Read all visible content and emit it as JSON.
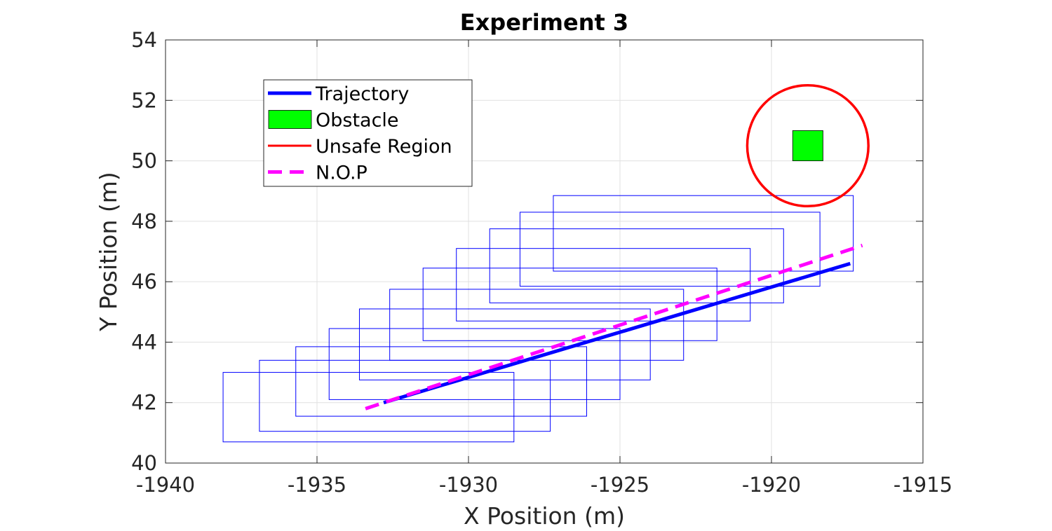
{
  "chart_data": {
    "type": "line",
    "title": "Experiment 3",
    "xlabel": "X Position (m)",
    "ylabel": "Y Position (m)",
    "xlim": [
      -1940,
      -1915
    ],
    "ylim": [
      40,
      54
    ],
    "xticks": [
      -1940,
      -1935,
      -1930,
      -1925,
      -1920,
      -1915
    ],
    "yticks": [
      40,
      42,
      44,
      46,
      48,
      50,
      52,
      54
    ],
    "grid": true,
    "legend_position": "top-left",
    "colors": {
      "trajectory": "#0000ff",
      "obstacle": "#00ff00",
      "unsafe": "#ff0000",
      "nop": "#ff00ff",
      "boxes": "#0000ff",
      "grid": "#e0e0e0",
      "axis": "#262626"
    },
    "legend": [
      {
        "key": "trajectory",
        "label": "Trajectory",
        "style": "line"
      },
      {
        "key": "obstacle",
        "label": "Obstacle",
        "style": "patch"
      },
      {
        "key": "unsafe",
        "label": "Unsafe Region",
        "style": "thin-line"
      },
      {
        "key": "nop",
        "label": "N.O.P",
        "style": "dashed"
      }
    ],
    "series": [
      {
        "name": "Trajectory",
        "x": [
          -1932.8,
          -1917.4
        ],
        "y": [
          42.0,
          46.6
        ]
      },
      {
        "name": "N.O.P",
        "x": [
          -1933.4,
          -1917.0
        ],
        "y": [
          41.8,
          47.2
        ]
      }
    ],
    "obstacle": {
      "x": [
        -1919.3,
        -1918.3
      ],
      "y": [
        50.0,
        51.0
      ]
    },
    "unsafe_region": {
      "cx": -1918.8,
      "cy": 50.5,
      "r": 2.0
    },
    "boxes": [
      {
        "x": [
          -1938.1,
          -1928.5
        ],
        "y": [
          40.7,
          43.0
        ]
      },
      {
        "x": [
          -1936.9,
          -1927.3
        ],
        "y": [
          41.05,
          43.4
        ]
      },
      {
        "x": [
          -1935.7,
          -1926.1
        ],
        "y": [
          41.55,
          43.85
        ]
      },
      {
        "x": [
          -1934.6,
          -1925.0
        ],
        "y": [
          42.1,
          44.45
        ]
      },
      {
        "x": [
          -1933.6,
          -1924.0
        ],
        "y": [
          42.75,
          45.1
        ]
      },
      {
        "x": [
          -1932.6,
          -1922.9
        ],
        "y": [
          43.4,
          45.75
        ]
      },
      {
        "x": [
          -1931.5,
          -1921.8
        ],
        "y": [
          44.05,
          46.45
        ]
      },
      {
        "x": [
          -1930.4,
          -1920.7
        ],
        "y": [
          44.7,
          47.1
        ]
      },
      {
        "x": [
          -1929.3,
          -1919.6
        ],
        "y": [
          45.3,
          47.75
        ]
      },
      {
        "x": [
          -1928.3,
          -1918.4
        ],
        "y": [
          45.85,
          48.3
        ]
      },
      {
        "x": [
          -1927.2,
          -1917.3
        ],
        "y": [
          46.35,
          48.85
        ]
      }
    ]
  }
}
